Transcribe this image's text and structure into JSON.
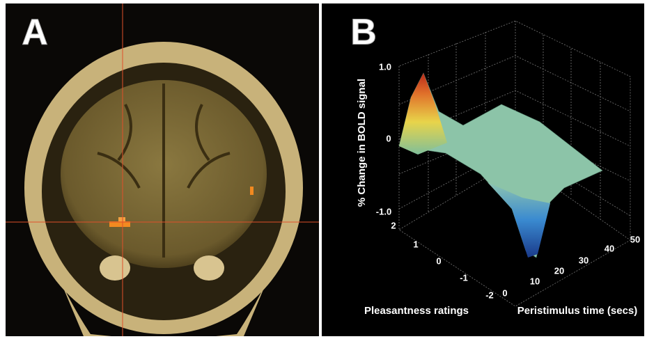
{
  "panels": [
    {
      "label": "A"
    },
    {
      "label": "B",
      "z_axis": {
        "title": "% Change in BOLD signal",
        "ticks": [
          "1.0",
          "0",
          "-1.0"
        ]
      },
      "y_axis": {
        "title": "Pleasantness ratings",
        "ticks": [
          "2",
          "1",
          "0",
          "-1",
          "-2"
        ]
      },
      "x_axis": {
        "title": "Peristimulus time (secs)",
        "ticks": [
          "0",
          "10",
          "20",
          "30",
          "40",
          "50"
        ]
      }
    }
  ]
}
